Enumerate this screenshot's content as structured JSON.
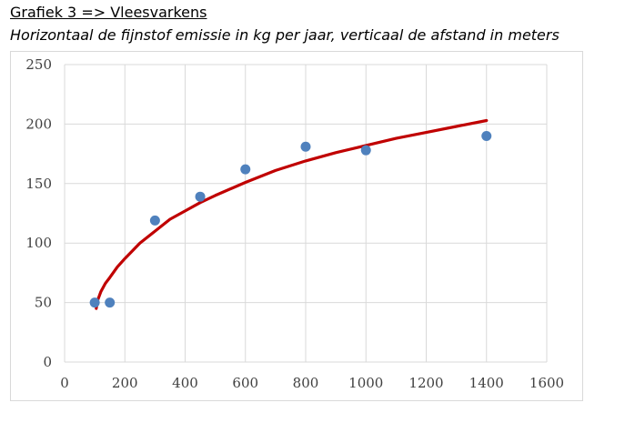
{
  "heading": "Grafiek 3 => Vleesvarkens",
  "subheading": "Horizontaal de fijnstof emissie in kg per jaar, verticaal de afstand in meters",
  "chart_data": {
    "type": "scatter",
    "x_ticks": [
      0,
      200,
      400,
      600,
      800,
      1000,
      1200,
      1400,
      1600
    ],
    "y_ticks": [
      0,
      50,
      100,
      150,
      200,
      250
    ],
    "xlim": [
      0,
      1600
    ],
    "ylim": [
      0,
      250
    ],
    "grid": true,
    "points": [
      {
        "x": 100,
        "y": 50
      },
      {
        "x": 150,
        "y": 50
      },
      {
        "x": 300,
        "y": 119
      },
      {
        "x": 450,
        "y": 139
      },
      {
        "x": 600,
        "y": 162
      },
      {
        "x": 800,
        "y": 181
      },
      {
        "x": 1000,
        "y": 178
      },
      {
        "x": 1400,
        "y": 190
      }
    ],
    "trendline": {
      "type": "logarithmic",
      "x": [
        105,
        110,
        120,
        135,
        150,
        175,
        200,
        250,
        300,
        350,
        400,
        450,
        500,
        600,
        700,
        800,
        900,
        1000,
        1100,
        1200,
        1300,
        1400
      ],
      "y": [
        45,
        52,
        59,
        66,
        71,
        80,
        87,
        100,
        110,
        120,
        127,
        134,
        140,
        151,
        161,
        169,
        176,
        182,
        188,
        193,
        198,
        203
      ]
    },
    "colors": {
      "points": "#4f81bd",
      "trendline": "#c00000",
      "grid": "#d9d9d9"
    }
  }
}
